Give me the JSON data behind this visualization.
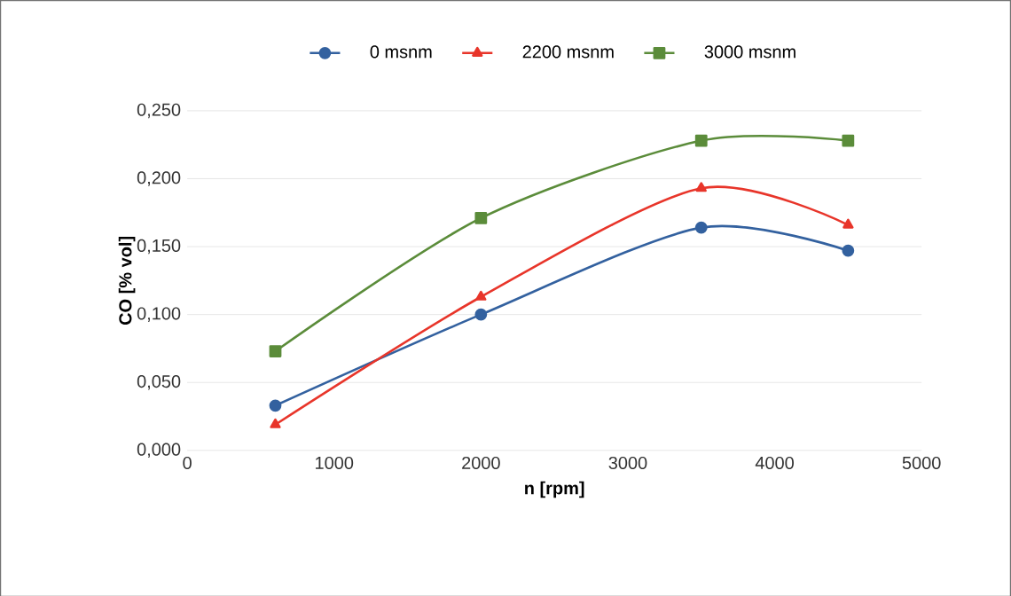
{
  "chart_data": {
    "type": "line",
    "xlabel": "n [rpm]",
    "ylabel": "CO [% vol]",
    "x": [
      600,
      2000,
      3500,
      4500
    ],
    "series": [
      {
        "name": "0 msnm",
        "color": "#33619f",
        "marker": "circle",
        "values": [
          0.033,
          0.1,
          0.164,
          0.147
        ]
      },
      {
        "name": "2200 msnm",
        "color": "#e8352a",
        "marker": "triangle",
        "values": [
          0.019,
          0.113,
          0.193,
          0.166
        ]
      },
      {
        "name": "3000 msnm",
        "color": "#5b8c3a",
        "marker": "square",
        "values": [
          0.073,
          0.171,
          0.228,
          0.228
        ]
      }
    ],
    "xlim": [
      0,
      5000
    ],
    "xticks": [
      0,
      1000,
      2000,
      3000,
      4000,
      5000
    ],
    "ylim": [
      0,
      0.25
    ],
    "yticks": [
      {
        "value": 0,
        "label": "0,000"
      },
      {
        "value": 0.05,
        "label": "0,050"
      },
      {
        "value": 0.1,
        "label": "0,100"
      },
      {
        "value": 0.15,
        "label": "0,150"
      },
      {
        "value": 0.2,
        "label": "0,200"
      },
      {
        "value": 0.25,
        "label": "0,250"
      }
    ],
    "grid": "y",
    "legend": "top"
  }
}
